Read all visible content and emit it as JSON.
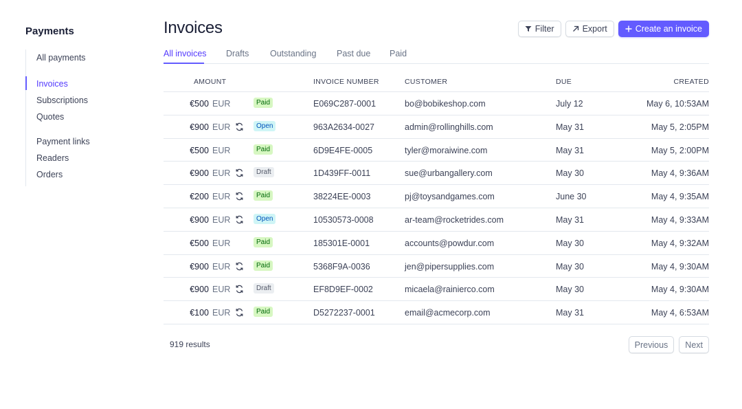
{
  "sidebar": {
    "title": "Payments",
    "items": [
      {
        "label": "All payments"
      },
      {
        "label": "Invoices"
      },
      {
        "label": "Subscriptions"
      },
      {
        "label": "Quotes"
      },
      {
        "label": "Payment links"
      },
      {
        "label": "Readers"
      },
      {
        "label": "Orders"
      }
    ],
    "active_index": 1
  },
  "header": {
    "title": "Invoices",
    "filter_label": "Filter",
    "export_label": "Export",
    "create_label": "Create an invoice"
  },
  "tabs": [
    {
      "label": "All invoices"
    },
    {
      "label": "Drafts"
    },
    {
      "label": "Outstanding"
    },
    {
      "label": "Past due"
    },
    {
      "label": "Paid"
    }
  ],
  "table": {
    "columns": {
      "amount": "AMOUNT",
      "invoice_number": "INVOICE NUMBER",
      "customer": "CUSTOMER",
      "due": "DUE",
      "created": "CREATED"
    },
    "rows": [
      {
        "amount": "€500",
        "currency": "EUR",
        "recurring": false,
        "status": "Paid",
        "invoice_number": "E069C287-0001",
        "customer": "bo@bobikeshop.com",
        "due": "July 12",
        "created": "May 6, 10:53AM"
      },
      {
        "amount": "€900",
        "currency": "EUR",
        "recurring": true,
        "status": "Open",
        "invoice_number": "963A2634-0027",
        "customer": "admin@rollinghills.com",
        "due": "May 31",
        "created": "May 5, 2:05PM"
      },
      {
        "amount": "€500",
        "currency": "EUR",
        "recurring": false,
        "status": "Paid",
        "invoice_number": "6D9E4FE-0005",
        "customer": "tyler@moraiwine.com",
        "due": "May 31",
        "created": "May 5, 2:00PM"
      },
      {
        "amount": "€900",
        "currency": "EUR",
        "recurring": true,
        "status": "Draft",
        "invoice_number": "1D439FF-0011",
        "customer": "sue@urbangallery.com",
        "due": "May 30",
        "created": "May 4, 9:36AM"
      },
      {
        "amount": "€200",
        "currency": "EUR",
        "recurring": true,
        "status": "Paid",
        "invoice_number": "38224EE-0003",
        "customer": "pj@toysandgames.com",
        "due": "June 30",
        "created": "May 4, 9:35AM"
      },
      {
        "amount": "€900",
        "currency": "EUR",
        "recurring": true,
        "status": "Open",
        "invoice_number": "10530573-0008",
        "customer": "ar-team@rocketrides.com",
        "due": "May 31",
        "created": "May 4, 9:33AM"
      },
      {
        "amount": "€500",
        "currency": "EUR",
        "recurring": false,
        "status": "Paid",
        "invoice_number": "185301E-0001",
        "customer": "accounts@powdur.com",
        "due": "May 30",
        "created": "May 4, 9:32AM"
      },
      {
        "amount": "€900",
        "currency": "EUR",
        "recurring": true,
        "status": "Paid",
        "invoice_number": "5368F9A-0036",
        "customer": "jen@pipersupplies.com",
        "due": "May 30",
        "created": "May 4, 9:30AM"
      },
      {
        "amount": "€900",
        "currency": "EUR",
        "recurring": true,
        "status": "Draft",
        "invoice_number": "EF8D9EF-0002",
        "customer": "micaela@rainierco.com",
        "due": "May 30",
        "created": "May 4, 9:30AM"
      },
      {
        "amount": "€100",
        "currency": "EUR",
        "recurring": true,
        "status": "Paid",
        "invoice_number": "D5272237-0001",
        "customer": "email@acmecorp.com",
        "due": "May 31",
        "created": "May 4, 6:53AM"
      }
    ]
  },
  "footer": {
    "results": "919 results",
    "previous_label": "Previous",
    "next_label": "Next"
  },
  "colors": {
    "accent": "#635bff",
    "paid_bg": "#d7f7c2",
    "open_bg": "#cff5f6",
    "draft_bg": "#ebeef1"
  },
  "icons": {
    "filter": "filter-icon",
    "export": "arrow-up-right-icon",
    "create": "plus-icon",
    "recurring": "recurring-icon"
  }
}
